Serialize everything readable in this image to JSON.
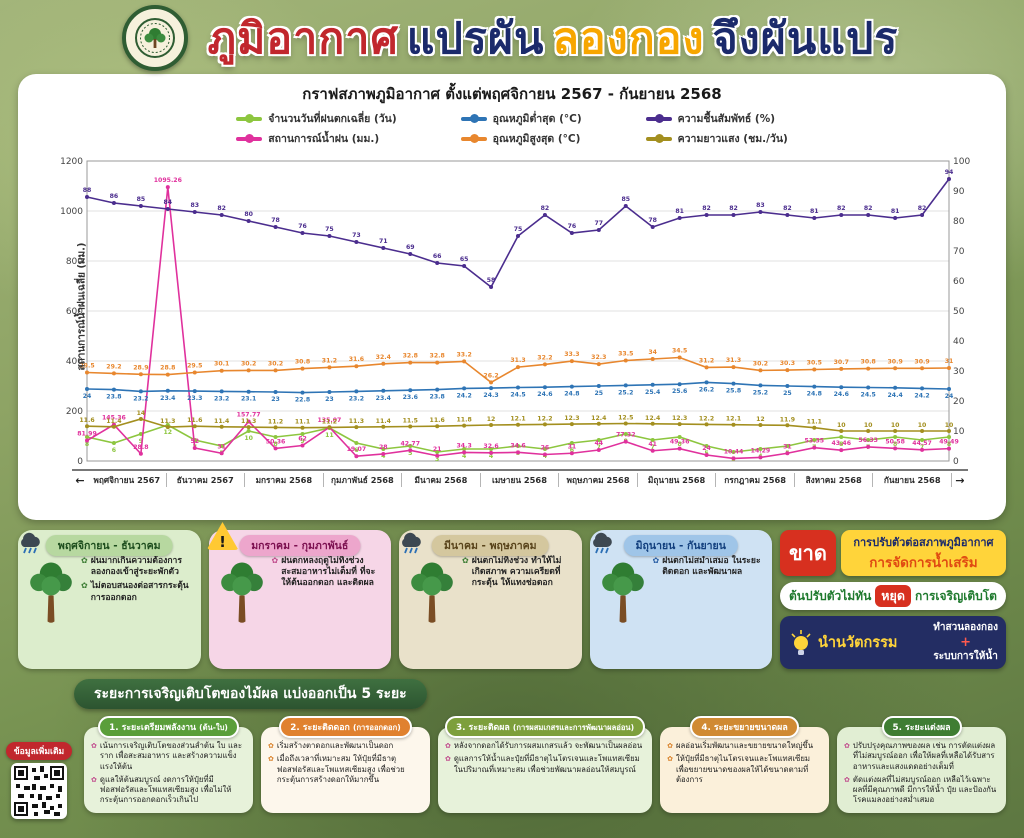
{
  "icons": {
    "flower_bullet": "✿",
    "warning": "!"
  },
  "header": {
    "title_parts": [
      {
        "text": "ภูมิอากาศ",
        "color": "#c1272d"
      },
      {
        "text": "แปรผัน",
        "color": "#1b2a6b"
      },
      {
        "text": "ลองกอง",
        "color": "#f7a600"
      },
      {
        "text": "จึงผันแปร",
        "color": "#1b2a6b"
      }
    ]
  },
  "chart_data": {
    "type": "line",
    "title": "กราฟสภาพภูมิอากาศ ตั้งแต่พฤศจิกายน 2567 - กันยายน 2568",
    "ylabel_left": "สถานการณ์น้ำฝนเฉลี่ย (มม.)",
    "ylim_left": [
      0,
      1200
    ],
    "ylim_right": [
      0,
      100
    ],
    "y_ticks_left": [
      0,
      200,
      400,
      600,
      800,
      1000,
      1200
    ],
    "y_ticks_right": [
      0,
      10,
      20,
      30,
      40,
      50,
      60,
      70,
      80,
      90,
      100
    ],
    "x_axis": {
      "arrow_left": "←",
      "arrow_right": "→"
    },
    "months": [
      "พฤศจิกายน 2567",
      "ธันวาคม 2567",
      "มกราคม 2568",
      "กุมภาพันธ์ 2568",
      "มีนาคม 2568",
      "เมษายน 2568",
      "พฤษภาคม 2568",
      "มิถุนายน 2568",
      "กรกฎาคม 2568",
      "สิงหาคม 2568",
      "กันยายน 2568"
    ],
    "legend_position": "top",
    "grid": true,
    "series": [
      {
        "name": "จำนวนวันที่ฝนตกเฉลี่ย (วัน)",
        "color": "#8dc63f",
        "axis": "right",
        "values": [
          8,
          6,
          9,
          12,
          7,
          5,
          10,
          8,
          9,
          11,
          6,
          4,
          5,
          3,
          4,
          4,
          5,
          4,
          6,
          7,
          9,
          7,
          8,
          5,
          3,
          4,
          5,
          7,
          8,
          7,
          8,
          7,
          8
        ]
      },
      {
        "name": "สถานการณ์น้ำฝน (มม.)",
        "color": "#e0319d",
        "axis": "left",
        "values": [
          81.99,
          145.36,
          28.8,
          1095.26,
          52,
          31,
          157.77,
          50.36,
          62,
          135.07,
          19.07,
          28,
          42.77,
          21,
          34.3,
          32.6,
          34.6,
          26,
          31,
          44,
          77.32,
          41,
          49.36,
          24,
          10.44,
          14.29,
          31,
          53.35,
          43.46,
          56.33,
          50.58,
          44.57,
          49.49
        ]
      },
      {
        "name": "อุณหภูมิต่ำสุด (°C)",
        "color": "#2e74b5",
        "axis": "right",
        "values": [
          24,
          23.8,
          23.2,
          23.4,
          23.3,
          23.2,
          23.1,
          23,
          22.8,
          23,
          23.2,
          23.4,
          23.6,
          23.8,
          24.2,
          24.3,
          24.5,
          24.6,
          24.8,
          25,
          25.2,
          25.4,
          25.6,
          26.2,
          25.8,
          25.2,
          25,
          24.8,
          24.6,
          24.5,
          24.4,
          24.2,
          24
        ]
      },
      {
        "name": "อุณหภูมิสูงสุด (°C)",
        "color": "#e8872e",
        "axis": "right",
        "values": [
          29.5,
          29.2,
          28.9,
          28.8,
          29.5,
          30.1,
          30.2,
          30.2,
          30.8,
          31.2,
          31.6,
          32.4,
          32.8,
          32.8,
          33.2,
          26.2,
          31.3,
          32.2,
          33.3,
          32.3,
          33.5,
          34,
          34.5,
          31.2,
          31.3,
          30.2,
          30.3,
          30.5,
          30.7,
          30.8,
          30.9,
          30.9,
          31
        ]
      },
      {
        "name": "ความชื้นสัมพัทธ์ (%)",
        "color": "#4b2d8e",
        "axis": "right",
        "values": [
          88,
          86,
          85,
          84,
          83,
          82,
          80,
          78,
          76,
          75,
          73,
          71,
          69,
          66,
          65,
          58,
          75,
          82,
          76,
          77,
          85,
          78,
          81,
          82,
          82,
          83,
          82,
          81,
          82,
          82,
          81,
          82,
          94
        ]
      },
      {
        "name": "ความยาวแสง (ชม./วัน)",
        "color": "#a38f1f",
        "axis": "right",
        "values": [
          11.6,
          11.4,
          14,
          11.3,
          11.6,
          11.4,
          11.3,
          11.2,
          11.1,
          11.2,
          11.3,
          11.4,
          11.5,
          11.6,
          11.8,
          12,
          12.1,
          12.2,
          12.3,
          12.4,
          12.5,
          12.4,
          12.3,
          12.2,
          12.1,
          12,
          11.9,
          11.1,
          10,
          10,
          10,
          10,
          10
        ]
      }
    ]
  },
  "period_cards": [
    {
      "period": "พฤศจิกายน - ธันวาคม",
      "bullets": [
        "ฝนมากเกินความต้องการ ลองกองเข้าสู่ระยะพักตัว",
        "ไม่ตอบสนองต่อสารกระตุ้น การออกดอก"
      ]
    },
    {
      "period": "มกราคม - กุมภาพันธ์",
      "bullets": [
        "ฝนตกหลงฤดูไม่ทิ้งช่วง สะสมอาหารไม่เต็มที่ ที่จะให้ต้นออกดอก และติดผล"
      ]
    },
    {
      "period": "มีนาคม - พฤษภาคม",
      "bullets": [
        "ฝนตกไม่ทิ้งช่วง ทำให้ไม่เกิดสภาพ ความเครียดที่กระตุ้น ให้แทงช่อดอก"
      ]
    },
    {
      "period": "มิถุนายน - กันยายน",
      "bullets": [
        "ฝนตกไม่สม่ำเสมอ ในระยะติดดอก และพัฒนาผล"
      ]
    }
  ],
  "right_panel": {
    "gap_box": {
      "badge": "ขาด",
      "line1": "การปรับตัวต่อสภาพภูมิอากาศ",
      "line2": "การจัดการน้ำเสริม"
    },
    "stop_box": {
      "left": "ต้นปรับตัวไม่ทัน",
      "badge": "หยุด",
      "right": "การเจริญเติบโต"
    },
    "innovation_box": {
      "label": "นำนวัตกรรม",
      "item1": "ทำสวนลองกอง",
      "plus": "+",
      "item2": "ระบบการให้น้ำ"
    }
  },
  "stages_section": {
    "title": "ระยะการเจริญเติบโตของไม้ผล แบ่งออกเป็น 5 ระยะ",
    "stages": [
      {
        "title": "1. ระยะเตรียมพลังงาน",
        "subtitle": "(ต้น-ใบ)",
        "bullets": [
          "เน้นการเจริญเติบโตของส่วนลำต้น ใบ และราก เพื่อสะสมอาหาร และสร้างความแข็งแรงให้ต้น",
          "ดูแลให้ต้นสมบูรณ์ งดการให้ปุ๋ยที่มีฟอสฟอรัสและโพแทสเซียมสูง เพื่อไม่ให้กระตุ้นการออกดอกเร็วเกินไป"
        ]
      },
      {
        "title": "2. ระยะติดดอก",
        "subtitle": "(การออกดอก)",
        "bullets": [
          "เริ่มสร้างตาดอกและพัฒนาเป็นดอก",
          "เมื่อถึงเวลาที่เหมาะสม ให้ปุ๋ยที่มีธาตุฟอสฟอรัสและโพแทสเซียมสูง เพื่อช่วยกระตุ้นการสร้างดอกให้มากขึ้น"
        ]
      },
      {
        "title": "3. ระยะติดผล",
        "subtitle": "(การผสมเกสรและการพัฒนาผลอ่อน)",
        "bullets": [
          "หลังจากดอกได้รับการผสมเกสรแล้ว จะพัฒนาเป็นผลอ่อน",
          "ดูแลการให้น้ำและปุ๋ยที่มีธาตุไนโตรเจนและโพแทสเซียมในปริมาณที่เหมาะสม เพื่อช่วยพัฒนาผลอ่อนให้สมบูรณ์"
        ]
      },
      {
        "title": "4. ระยะขยายขนาดผล",
        "subtitle": "",
        "bullets": [
          "ผลอ่อนเริ่มพัฒนาและขยายขนาดใหญ่ขึ้น",
          "ให้ปุ๋ยที่มีธาตุไนโตรเจนและโพแทสเซียม เพื่อขยายขนาดของผลให้ได้ขนาดตามที่ต้องการ"
        ]
      },
      {
        "title": "5. ระยะแต่งผล",
        "subtitle": "",
        "bullets": [
          "ปรับปรุงคุณภาพของผล เช่น การตัดแต่งผลที่ไม่สมบูรณ์ออก เพื่อให้ผลที่เหลือได้รับสารอาหารและแสงแดดอย่างเต็มที่",
          "ตัดแต่งผลที่ไม่สมบูรณ์ออก เหลือไว้เฉพาะผลที่มีคุณภาพดี มีการให้น้ำ ปุ๋ย และป้องกันโรคแมลงอย่างสม่ำเสมอ"
        ]
      }
    ]
  },
  "more_info": {
    "label": "ข้อมูลเพิ่มเติม"
  }
}
